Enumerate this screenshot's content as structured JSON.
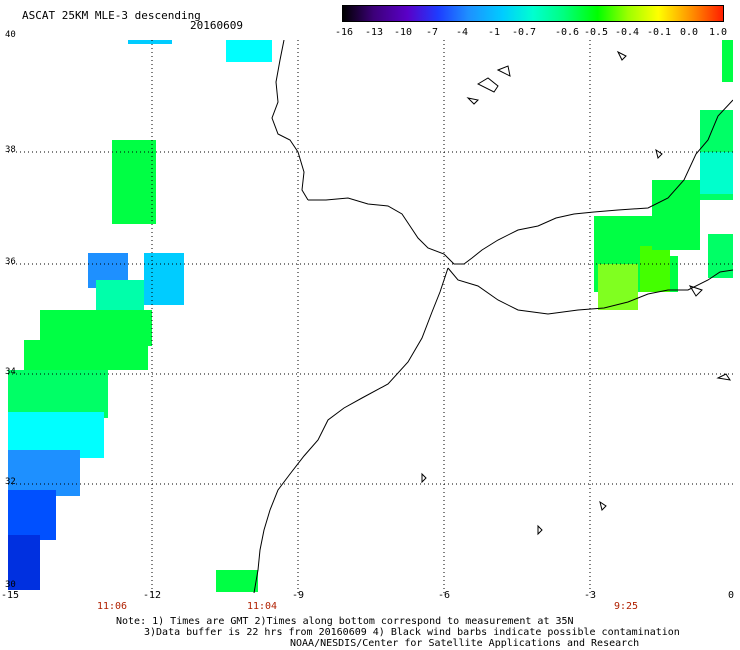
{
  "header": {
    "title": "ASCAT 25KM MLE-3 descending",
    "date": "20160609"
  },
  "colorbar": {
    "labels": [
      "-16",
      "-13",
      "-10",
      "-7",
      "-4",
      "-1",
      "-0.7",
      "-0.6",
      "-0.5",
      "-0.4",
      "-0.1",
      "0.0",
      "1.0"
    ],
    "colors": [
      "#000000",
      "#3c0078",
      "#5a00c8",
      "#1e3cff",
      "#1e90ff",
      "#00ccff",
      "#00ffd0",
      "#00ff80",
      "#00ff00",
      "#9cff00",
      "#ffff00",
      "#ff8c00",
      "#ff1e00"
    ]
  },
  "axes": {
    "lat_labels": [
      "40",
      "38",
      "36",
      "34",
      "32",
      "30"
    ],
    "lon_labels": [
      "-15",
      "-12",
      "-9",
      "-6",
      "-3",
      "0"
    ],
    "time_labels": [
      "11:06",
      "11:04",
      "9:25"
    ]
  },
  "notes": {
    "line1": "Note: 1) Times are GMT 2)Times along bottom correspond to measurement at 35N",
    "line2": "3)Data buffer is 22 hrs from 20160609 4) Black wind barbs indicate possible contamination",
    "line3": "NOAA/NESDIS/Center for Satellite Applications and Research"
  },
  "map": {
    "lat_range": [
      30,
      40
    ],
    "lon_range": [
      -15,
      0
    ],
    "gridlines": true,
    "coastline": "black",
    "swath_colors": [
      "#00ff44",
      "#44ff00",
      "#00ffaa",
      "#00ffff",
      "#00ccff",
      "#1e90ff",
      "#0050ff",
      "#0030e0",
      "#80ff20"
    ]
  }
}
